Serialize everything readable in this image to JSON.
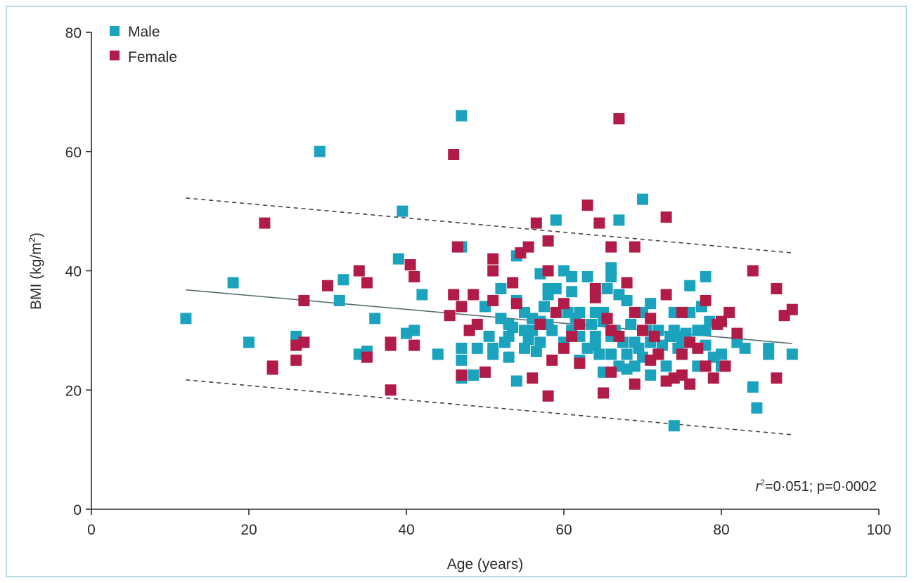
{
  "chart_data": {
    "type": "scatter",
    "xlabel": "Age (years)",
    "ylabel_main": "BMI (kg/m",
    "ylabel_sup": "2",
    "ylabel_close": ")",
    "xlim": [
      0,
      100
    ],
    "ylim": [
      0,
      80
    ],
    "xticks": [
      0,
      20,
      40,
      60,
      80,
      100
    ],
    "yticks": [
      0,
      20,
      40,
      60,
      80
    ],
    "grid": false,
    "legend_position": "top-left",
    "annotation": {
      "r_symbol": "r",
      "r_exponent": "2",
      "text": "=0·051; p=0·0002"
    },
    "series": [
      {
        "name": "Male",
        "color": "#1ba3bd",
        "points": [
          [
            12,
            32
          ],
          [
            18,
            38
          ],
          [
            20,
            28
          ],
          [
            26,
            29
          ],
          [
            29,
            60
          ],
          [
            31.5,
            35
          ],
          [
            32,
            38.5
          ],
          [
            34,
            26
          ],
          [
            35,
            26.5
          ],
          [
            36,
            32
          ],
          [
            39,
            42
          ],
          [
            39.5,
            50
          ],
          [
            40,
            29.5
          ],
          [
            41,
            30
          ],
          [
            42,
            36
          ],
          [
            44,
            26
          ],
          [
            47,
            66
          ],
          [
            47,
            44
          ],
          [
            47,
            27
          ],
          [
            47,
            25
          ],
          [
            47,
            22
          ],
          [
            48.5,
            22.5
          ],
          [
            49,
            27
          ],
          [
            50,
            23
          ],
          [
            50,
            34
          ],
          [
            50.5,
            29
          ],
          [
            51,
            27
          ],
          [
            51,
            26
          ],
          [
            52,
            37
          ],
          [
            52,
            32
          ],
          [
            53,
            25.5
          ],
          [
            53,
            29
          ],
          [
            53,
            31
          ],
          [
            54,
            35
          ],
          [
            54,
            42.5
          ],
          [
            54,
            21.5
          ],
          [
            55,
            30
          ],
          [
            55,
            27
          ],
          [
            55,
            33
          ],
          [
            56,
            32
          ],
          [
            56,
            30
          ],
          [
            56.5,
            26.5
          ],
          [
            57,
            39.5
          ],
          [
            57,
            28
          ],
          [
            57.5,
            34
          ],
          [
            58,
            37
          ],
          [
            58,
            31
          ],
          [
            58,
            36
          ],
          [
            58.5,
            30
          ],
          [
            59,
            48.5
          ],
          [
            59,
            37
          ],
          [
            60,
            40
          ],
          [
            60,
            28
          ],
          [
            61,
            36.5
          ],
          [
            61,
            39
          ],
          [
            61.5,
            32
          ],
          [
            62,
            25
          ],
          [
            62,
            29
          ],
          [
            62,
            33
          ],
          [
            63,
            27
          ],
          [
            63,
            39
          ],
          [
            64,
            33
          ],
          [
            64,
            29
          ],
          [
            64.5,
            26
          ],
          [
            65,
            23
          ],
          [
            65.5,
            37
          ],
          [
            65,
            33
          ],
          [
            66,
            40.5
          ],
          [
            66,
            39
          ],
          [
            66,
            29
          ],
          [
            66,
            26
          ],
          [
            67,
            48.5
          ],
          [
            67,
            36
          ],
          [
            67,
            24
          ],
          [
            67.5,
            28
          ],
          [
            68,
            35
          ],
          [
            68,
            23.5
          ],
          [
            68.5,
            31
          ],
          [
            69,
            24
          ],
          [
            69,
            28
          ],
          [
            69.5,
            27
          ],
          [
            70,
            52
          ],
          [
            70,
            33
          ],
          [
            70.5,
            30
          ],
          [
            71,
            34.5
          ],
          [
            71,
            22.5
          ],
          [
            71,
            28
          ],
          [
            72,
            30
          ],
          [
            72,
            26
          ],
          [
            73,
            24
          ],
          [
            73.5,
            29
          ],
          [
            74,
            14
          ],
          [
            74,
            33
          ],
          [
            74,
            30
          ],
          [
            74.5,
            27
          ],
          [
            75,
            28
          ],
          [
            76,
            37.5
          ],
          [
            76,
            33
          ],
          [
            77,
            24
          ],
          [
            77,
            30
          ],
          [
            77.5,
            34
          ],
          [
            78,
            39
          ],
          [
            78,
            30
          ],
          [
            78,
            27.5
          ],
          [
            79,
            25.5
          ],
          [
            80,
            26
          ],
          [
            80,
            24
          ],
          [
            82,
            28
          ],
          [
            83,
            27
          ],
          [
            84,
            20.5
          ],
          [
            84.5,
            17
          ],
          [
            86,
            27
          ],
          [
            86,
            26
          ],
          [
            89,
            26
          ],
          [
            53.5,
            30.5
          ],
          [
            55.5,
            28.5
          ],
          [
            60.5,
            33
          ],
          [
            63.5,
            31
          ],
          [
            65,
            31.5
          ],
          [
            68,
            26
          ],
          [
            70,
            25.5
          ],
          [
            72.5,
            27.5
          ],
          [
            75.5,
            29.5
          ],
          [
            78.5,
            31.5
          ],
          [
            52.5,
            28
          ],
          [
            57,
            31.5
          ],
          [
            61,
            30
          ],
          [
            64,
            27.5
          ],
          [
            66.5,
            30
          ],
          [
            74.5,
            29
          ]
        ]
      },
      {
        "name": "Female",
        "color": "#b01c47",
        "points": [
          [
            22,
            48
          ],
          [
            23,
            24
          ],
          [
            23,
            23.5
          ],
          [
            26,
            27.5
          ],
          [
            26,
            25
          ],
          [
            27,
            28
          ],
          [
            27,
            35
          ],
          [
            30,
            37.5
          ],
          [
            34,
            40
          ],
          [
            35,
            38
          ],
          [
            35,
            25.5
          ],
          [
            38,
            28
          ],
          [
            38,
            27.5
          ],
          [
            38,
            20
          ],
          [
            40.5,
            41
          ],
          [
            41,
            39
          ],
          [
            41,
            27.5
          ],
          [
            45.5,
            32.5
          ],
          [
            46,
            59.5
          ],
          [
            46.5,
            44
          ],
          [
            46,
            36
          ],
          [
            47,
            34
          ],
          [
            47,
            22.5
          ],
          [
            48.5,
            36
          ],
          [
            49,
            31
          ],
          [
            50,
            23
          ],
          [
            51,
            42
          ],
          [
            51,
            40
          ],
          [
            51,
            35
          ],
          [
            53.5,
            38
          ],
          [
            54,
            34.5
          ],
          [
            54.5,
            43
          ],
          [
            55.5,
            44
          ],
          [
            56,
            22
          ],
          [
            56.5,
            48
          ],
          [
            57,
            31
          ],
          [
            58,
            45
          ],
          [
            58,
            40
          ],
          [
            58,
            19
          ],
          [
            58.5,
            25
          ],
          [
            59,
            33
          ],
          [
            60,
            34.5
          ],
          [
            60,
            27
          ],
          [
            61,
            29
          ],
          [
            62,
            24.5
          ],
          [
            63,
            51
          ],
          [
            64,
            37
          ],
          [
            64,
            35.5
          ],
          [
            64.5,
            48
          ],
          [
            65,
            19.5
          ],
          [
            65.5,
            32
          ],
          [
            66,
            44
          ],
          [
            66,
            30
          ],
          [
            66,
            23
          ],
          [
            67,
            65.5
          ],
          [
            67,
            29
          ],
          [
            68,
            38
          ],
          [
            69,
            44
          ],
          [
            69,
            21
          ],
          [
            70,
            30
          ],
          [
            71,
            32
          ],
          [
            71,
            25
          ],
          [
            72,
            26
          ],
          [
            73,
            49
          ],
          [
            73,
            36
          ],
          [
            73,
            21.5
          ],
          [
            74,
            22
          ],
          [
            75,
            22.5
          ],
          [
            75,
            26
          ],
          [
            76,
            21
          ],
          [
            76,
            28
          ],
          [
            77,
            27
          ],
          [
            78,
            35
          ],
          [
            78,
            24
          ],
          [
            79,
            22
          ],
          [
            79.5,
            31
          ],
          [
            80,
            31.5
          ],
          [
            80.5,
            24
          ],
          [
            81,
            33
          ],
          [
            82,
            29.5
          ],
          [
            84,
            40
          ],
          [
            87,
            22
          ],
          [
            87,
            37
          ],
          [
            88,
            32.5
          ],
          [
            89,
            33.5
          ],
          [
            48,
            30
          ],
          [
            62,
            31
          ],
          [
            69,
            33
          ],
          [
            75,
            33
          ],
          [
            71.5,
            29
          ]
        ]
      }
    ],
    "regression": {
      "fit": {
        "x": [
          12,
          89
        ],
        "y": [
          36.8,
          27.8
        ]
      },
      "upper_bound": {
        "x": [
          12,
          89
        ],
        "y": [
          52.2,
          43
        ]
      },
      "lower_bound": {
        "x": [
          12,
          89
        ],
        "y": [
          21.7,
          12.5
        ]
      }
    }
  }
}
